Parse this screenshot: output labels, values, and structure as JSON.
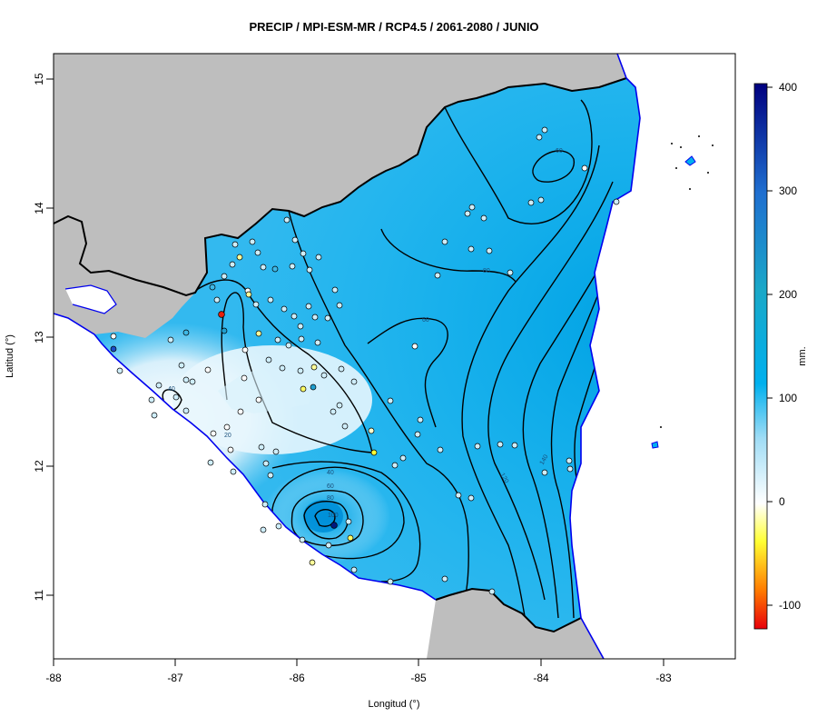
{
  "title": "PRECIP / MPI-ESM-MR / RCP4.5 / 2061-2080 / JUNIO",
  "x_axis": {
    "label": "Longitud (°)",
    "ticks": [
      "-88",
      "-87",
      "-86",
      "-85",
      "-84",
      "-83"
    ]
  },
  "y_axis": {
    "label": "Latitud (°)",
    "ticks": [
      "15",
      "14",
      "13",
      "12",
      "11"
    ]
  },
  "colorbar": {
    "label": "mm.",
    "ticks": [
      "400",
      "300",
      "200",
      "100",
      "0",
      "-100"
    ],
    "range": [
      -120,
      400
    ],
    "colors": {
      "top": "#00007f",
      "upper": "#1f6fd0",
      "mid_high": "#00b0ee",
      "mid": "#9fdcf5",
      "zero": "#ffffff",
      "low": "#ffff33",
      "lowest": "#e8000b"
    }
  },
  "contour_labels": [
    "20",
    "40",
    "40",
    "60",
    "80",
    "100",
    "60",
    "60",
    "80",
    "120",
    "140"
  ],
  "colors": {
    "land_background": "#bebebe",
    "border": "#000000",
    "coastline": "#0000ee",
    "frame": "#000000"
  }
}
